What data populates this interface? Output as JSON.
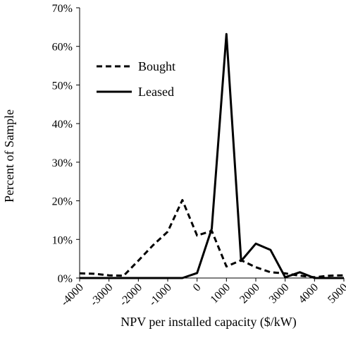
{
  "chart_data": {
    "type": "line",
    "title": "",
    "xlabel": "NPV per installed capacity ($/kW)",
    "ylabel": "Percent of Sample",
    "xlim": [
      -4000,
      5000
    ],
    "ylim": [
      0,
      70
    ],
    "x_ticks": [
      -4000,
      -3000,
      -2000,
      -1000,
      0,
      1000,
      2000,
      3000,
      4000,
      5000
    ],
    "x_tick_labels": [
      "-4000",
      "-3000",
      "-2000",
      "-1000",
      "0",
      "1000",
      "2000",
      "3000",
      "4000",
      "5000"
    ],
    "y_ticks": [
      0,
      10,
      20,
      30,
      40,
      50,
      60,
      70
    ],
    "y_tick_labels": [
      "0%",
      "10%",
      "20%",
      "30%",
      "40%",
      "50%",
      "60%",
      "70%"
    ],
    "grid": false,
    "legend_position": "upper-left",
    "series": [
      {
        "name": "Bought",
        "style": "dashed",
        "color": "#000000",
        "x": [
          -4000,
          -3500,
          -3000,
          -2500,
          -2000,
          -1500,
          -1000,
          -500,
          0,
          500,
          1000,
          1500,
          2000,
          2500,
          3000,
          3500,
          4000,
          4500,
          5000
        ],
        "y": [
          1.2,
          1.1,
          0.7,
          0.6,
          4.5,
          8.5,
          12.0,
          20.2,
          11.0,
          12.2,
          3.0,
          4.6,
          2.8,
          1.5,
          1.2,
          0.6,
          0.2,
          0.6,
          0.7
        ]
      },
      {
        "name": "Leased",
        "style": "solid",
        "color": "#000000",
        "x": [
          -4000,
          -3500,
          -3000,
          -2500,
          -2000,
          -1500,
          -1000,
          -500,
          0,
          500,
          1000,
          1500,
          2000,
          2500,
          3000,
          3500,
          4000,
          4500,
          5000
        ],
        "y": [
          0,
          0,
          0,
          0,
          0,
          0,
          0,
          0,
          1.3,
          12.8,
          63.2,
          4.4,
          8.9,
          7.3,
          0.2,
          1.5,
          0,
          0,
          0
        ]
      }
    ]
  }
}
